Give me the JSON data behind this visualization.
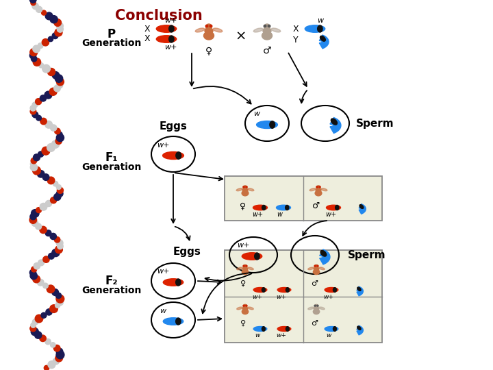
{
  "title": "Conclusion",
  "title_color": "#8B0000",
  "bg_color": "#FFFFFF",
  "p_gen_label": "P\nGeneration",
  "f1_gen_label": "F₁\nGeneration",
  "f2_gen_label": "F₂\nGeneration",
  "eggs_label": "Eggs",
  "sperm_label": "Sperm",
  "red_chrom_color": "#DD2200",
  "blue_chrom_color": "#2288EE",
  "chrom_stripe_color": "#111111",
  "w_plus": "w+",
  "w_label": "w",
  "female_fly_color": "#C87040",
  "male_fly_color": "#B0A090",
  "box_face": "#EEEEDD",
  "box_edge": "#888888"
}
